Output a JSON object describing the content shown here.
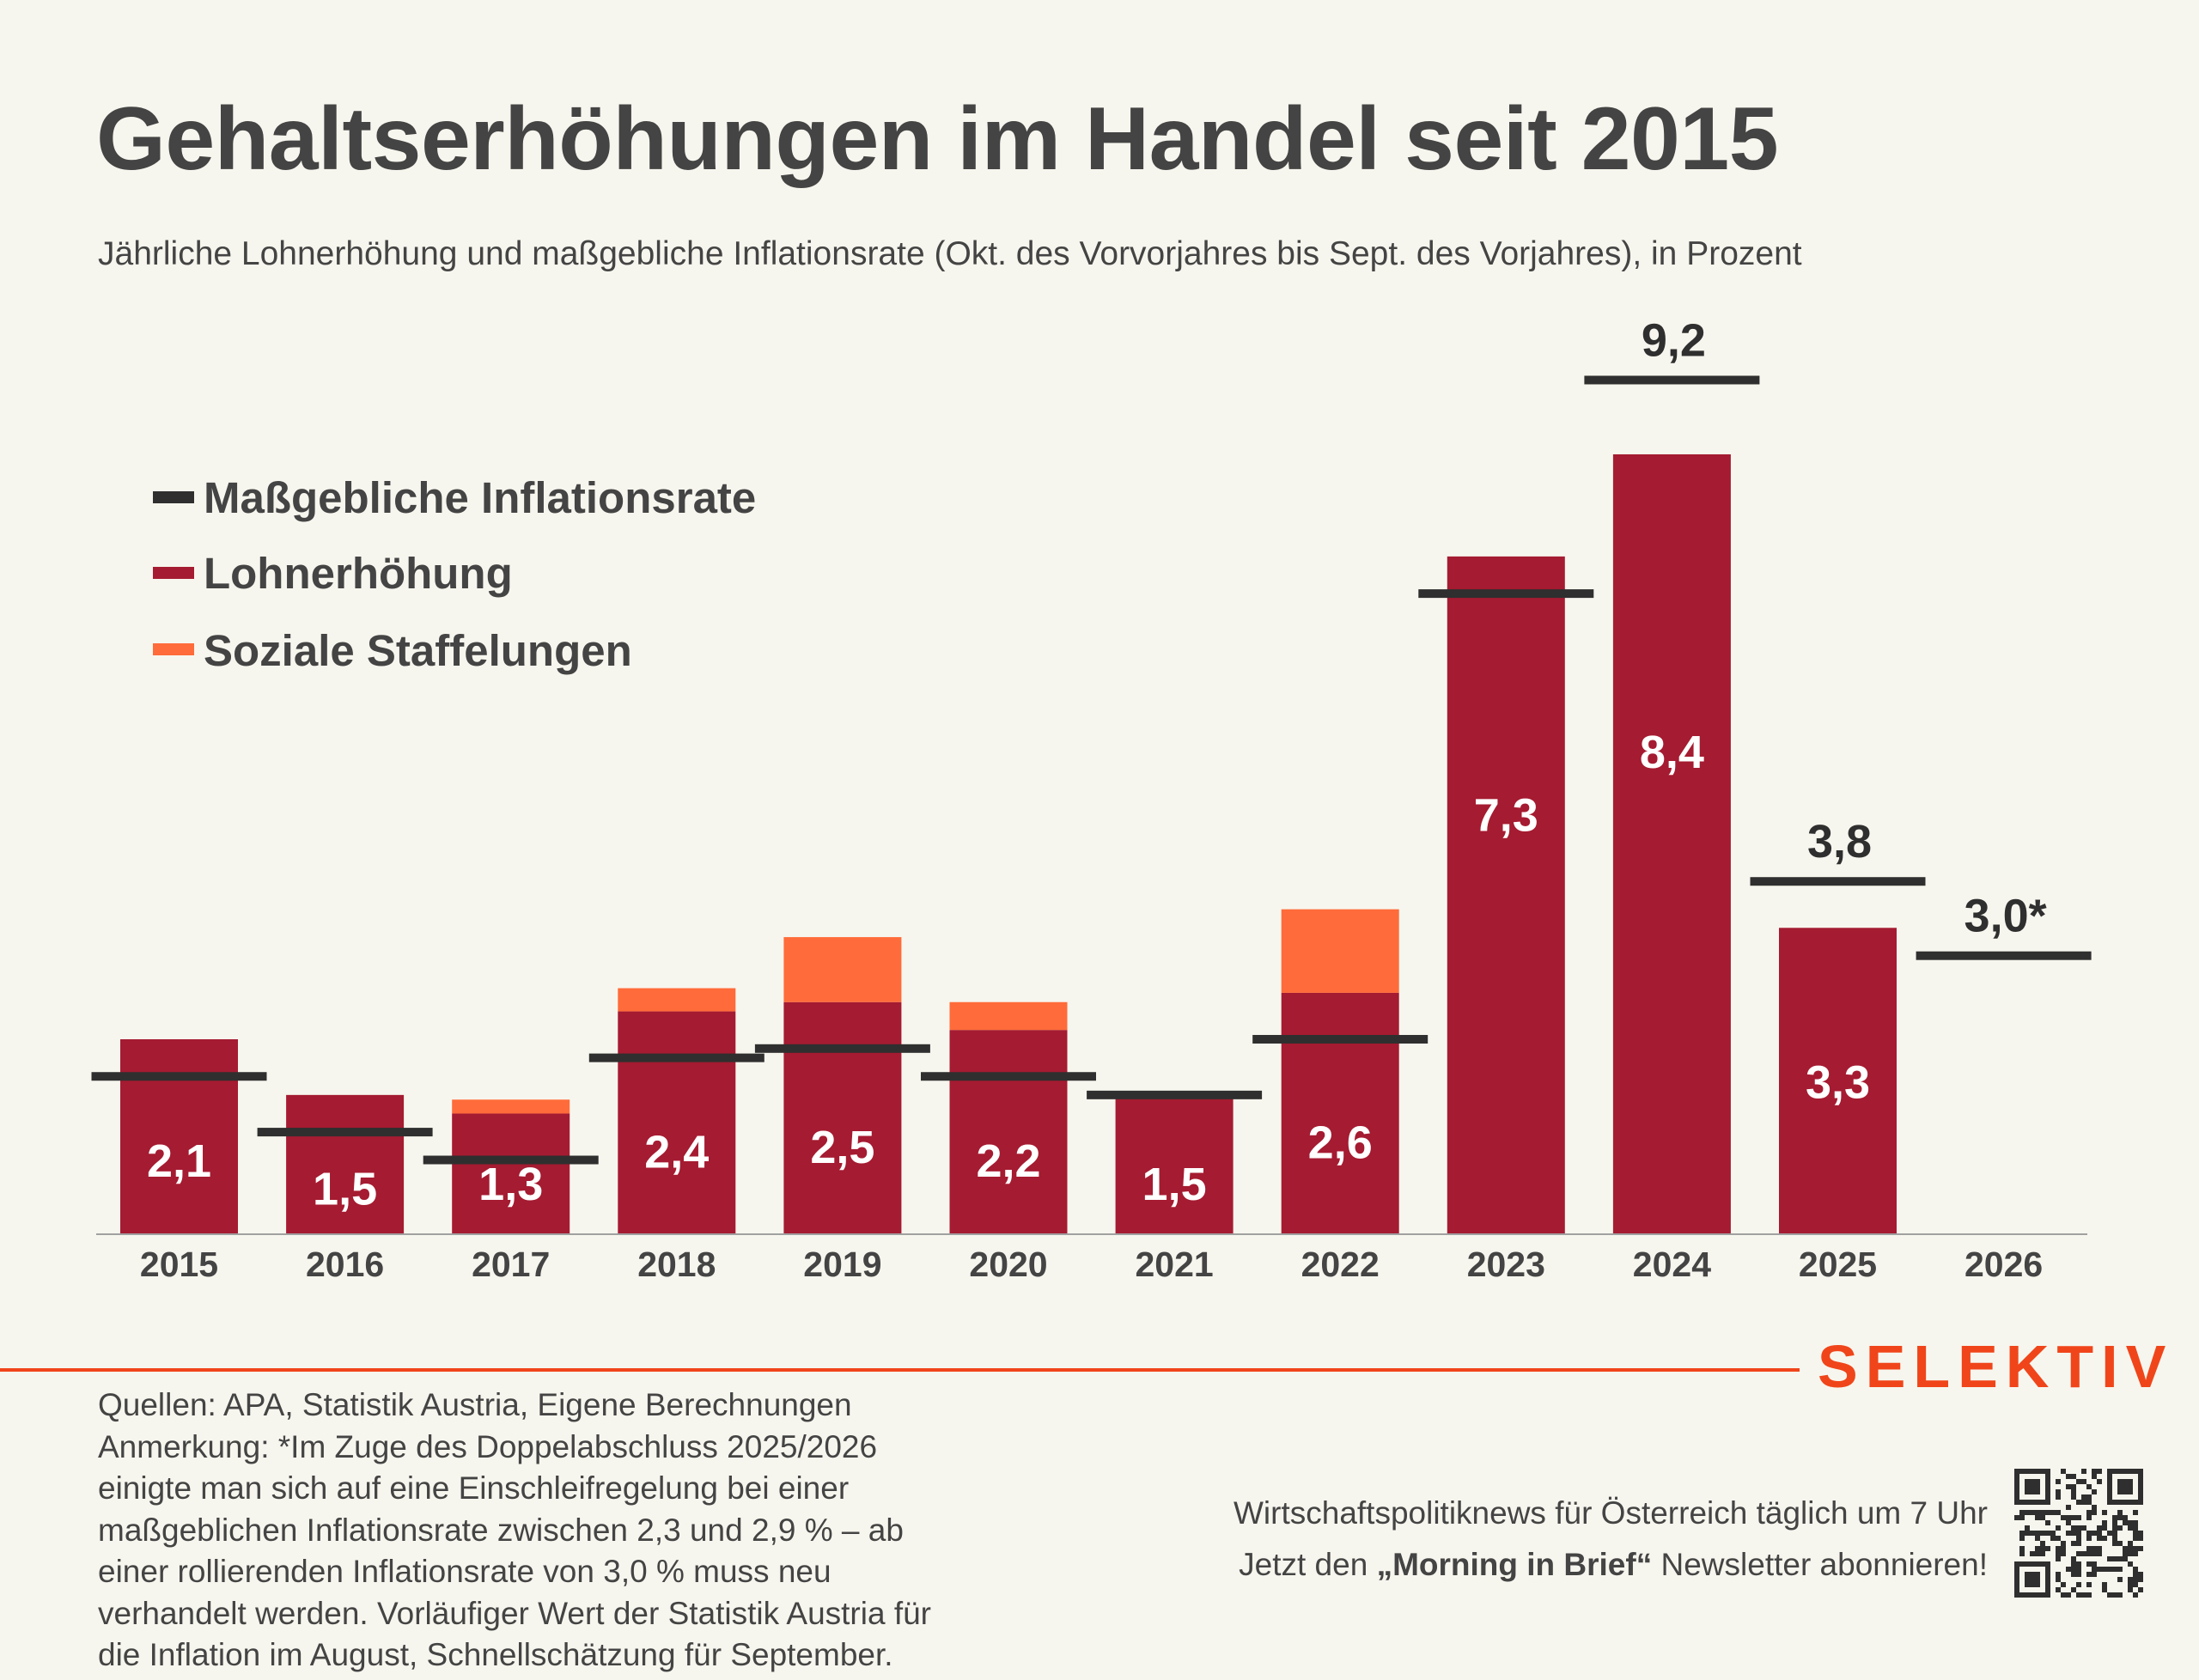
{
  "header": {
    "title": "Gehaltserhöhungen im Handel seit 2015",
    "subtitle": "Jährliche Lohnerhöhung und maßgebliche Inflationsrate (Okt. des Vorvorjahres bis Sept. des Vorjahres), in Prozent"
  },
  "colors": {
    "background": "#F7F6EE",
    "wage": "#A51B31",
    "social": "#FF6B3A",
    "inflation": "#2F2F2F",
    "text": "#444444",
    "brand": "#F0451A",
    "axis": "#A0A0A0"
  },
  "chart_data": {
    "type": "bar",
    "title": "Gehaltserhöhungen im Handel seit 2015",
    "subtitle": "Jährliche Lohnerhöhung und maßgebliche Inflationsrate (Okt. des Vorvorjahres bis Sept. des Vorjahres), in Prozent",
    "xlabel": "",
    "ylabel": "Prozent",
    "ylim": [
      0,
      9.5
    ],
    "grid": false,
    "stacked": true,
    "legend_position": "top-left",
    "categories": [
      "2015",
      "2016",
      "2017",
      "2018",
      "2019",
      "2020",
      "2021",
      "2022",
      "2023",
      "2024",
      "2025",
      "2026"
    ],
    "legend": [
      {
        "key": "inflation",
        "label": "Maßgebliche Inflationsrate",
        "color": "#2F2F2F",
        "marker": "line"
      },
      {
        "key": "wage",
        "label": "Lohnerhöhung",
        "color": "#A51B31",
        "marker": "bar"
      },
      {
        "key": "social",
        "label": "Soziale Staffelungen",
        "color": "#FF6B3A",
        "marker": "bar"
      }
    ],
    "series": [
      {
        "name": "Lohnerhöhung",
        "key": "wage",
        "values": [
          2.1,
          1.5,
          1.3,
          2.4,
          2.5,
          2.2,
          1.5,
          2.6,
          7.3,
          8.4,
          3.3,
          null
        ],
        "labels": [
          "2,1",
          "1,5",
          "1,3",
          "2,4",
          "2,5",
          "2,2",
          "1,5",
          "2,6",
          "7,3",
          "8,4",
          "3,3",
          null
        ]
      },
      {
        "name": "Soziale Staffelungen",
        "key": "social",
        "values": [
          0,
          0,
          0.15,
          0.25,
          0.7,
          0.3,
          0,
          0.9,
          0,
          0,
          0,
          null
        ]
      },
      {
        "name": "Maßgebliche Inflationsrate",
        "key": "inflation",
        "values": [
          1.7,
          1.1,
          0.8,
          1.9,
          2.0,
          1.7,
          1.5,
          2.1,
          6.9,
          9.2,
          3.8,
          3.0
        ],
        "labels": [
          null,
          null,
          null,
          null,
          null,
          null,
          null,
          null,
          null,
          "9,2",
          "3,8",
          "3,0*"
        ]
      }
    ]
  },
  "footer": {
    "brand": "SELEKTIV",
    "notes": [
      "Quellen: APA, Statistik Austria, Eigene Berechnungen",
      "Anmerkung: *Im Zuge des Doppelabschluss 2025/2026",
      "einigte man sich auf eine Einschleifregelung bei einer",
      "maßgeblichen Inflationsrate zwischen 2,3 und 2,9 % – ab",
      "einer rollierenden Inflationsrate von 3,0 % muss neu",
      "verhandelt werden. Vorläufiger Wert der Statistik Austria für",
      "die Inflation im August, Schnellschätzung für September."
    ],
    "promo_line1": "Wirtschaftspolitiknews für Österreich täglich um 7 Uhr",
    "promo_line2_prefix": "Jetzt den ",
    "promo_line2_bold": "„Morning in Brief“",
    "promo_line2_suffix": " Newsletter abonnieren!",
    "qr_icon": "qr-code-icon"
  }
}
